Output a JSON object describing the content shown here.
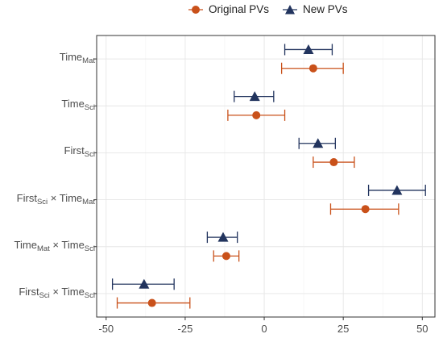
{
  "chart_data": {
    "type": "scatter",
    "title": "",
    "xlabel": "",
    "ylabel": "",
    "xlim": [
      -53,
      54
    ],
    "x_ticks": [
      {
        "value": -50,
        "label": "-50"
      },
      {
        "value": -25,
        "label": "-25"
      },
      {
        "value": 0,
        "label": "0"
      },
      {
        "value": 25,
        "label": "25"
      },
      {
        "value": 50,
        "label": "50"
      }
    ],
    "grid": true,
    "legend_position": "top",
    "categories": [
      {
        "base": "Time",
        "sub": "Mat",
        "base2": "",
        "sub2": ""
      },
      {
        "base": "Time",
        "sub": "Sci",
        "base2": "",
        "sub2": ""
      },
      {
        "base": "First",
        "sub": "Sci",
        "base2": "",
        "sub2": ""
      },
      {
        "base": "First",
        "sub": "Sci",
        "base2": "Time",
        "sub2": "Mat"
      },
      {
        "base": "Time",
        "sub": "Mat",
        "base2": "Time",
        "sub2": "Sci"
      },
      {
        "base": "First",
        "sub": "Sci",
        "base2": "Time",
        "sub2": "Sci"
      }
    ],
    "separator": " × ",
    "series": [
      {
        "name": "Original PVs",
        "color": "#c9511a",
        "marker": "circle",
        "estimates": [
          15.5,
          -2.5,
          22.0,
          32.0,
          -12.0,
          -35.5
        ],
        "lower": [
          5.5,
          -11.5,
          15.5,
          21.0,
          -16.0,
          -46.5
        ],
        "upper": [
          25.0,
          6.5,
          28.5,
          42.5,
          -8.0,
          -23.5
        ]
      },
      {
        "name": "New PVs",
        "color": "#22345e",
        "marker": "triangle",
        "estimates": [
          14.0,
          -3.0,
          17.0,
          42.0,
          -13.0,
          -38.0
        ],
        "lower": [
          6.5,
          -9.5,
          11.0,
          33.0,
          -18.0,
          -48.0
        ],
        "upper": [
          21.5,
          3.0,
          22.5,
          51.0,
          -8.5,
          -28.5
        ]
      }
    ]
  }
}
